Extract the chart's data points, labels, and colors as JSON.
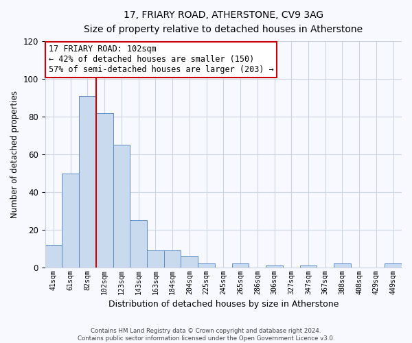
{
  "title": "17, FRIARY ROAD, ATHERSTONE, CV9 3AG",
  "subtitle": "Size of property relative to detached houses in Atherstone",
  "xlabel": "Distribution of detached houses by size in Atherstone",
  "ylabel": "Number of detached properties",
  "bar_labels": [
    "41sqm",
    "61sqm",
    "82sqm",
    "102sqm",
    "123sqm",
    "143sqm",
    "163sqm",
    "184sqm",
    "204sqm",
    "225sqm",
    "245sqm",
    "265sqm",
    "286sqm",
    "306sqm",
    "327sqm",
    "347sqm",
    "367sqm",
    "388sqm",
    "408sqm",
    "429sqm",
    "449sqm"
  ],
  "bar_heights": [
    12,
    50,
    91,
    82,
    65,
    25,
    9,
    9,
    6,
    2,
    0,
    2,
    0,
    1,
    0,
    1,
    0,
    2,
    0,
    0,
    2
  ],
  "bar_color": "#c9d9ee",
  "bar_edge_color": "#5b8cc8",
  "ylim": [
    0,
    120
  ],
  "yticks": [
    0,
    20,
    40,
    60,
    80,
    100,
    120
  ],
  "vline_color": "#cc0000",
  "annotation_title": "17 FRIARY ROAD: 102sqm",
  "annotation_line1": "← 42% of detached houses are smaller (150)",
  "annotation_line2": "57% of semi-detached houses are larger (203) →",
  "annotation_box_color": "#ffffff",
  "annotation_box_edge": "#cc0000",
  "footer1": "Contains HM Land Registry data © Crown copyright and database right 2024.",
  "footer2": "Contains public sector information licensed under the Open Government Licence v3.0.",
  "background_color": "#f8f8ff",
  "grid_color": "#cdd5e0"
}
